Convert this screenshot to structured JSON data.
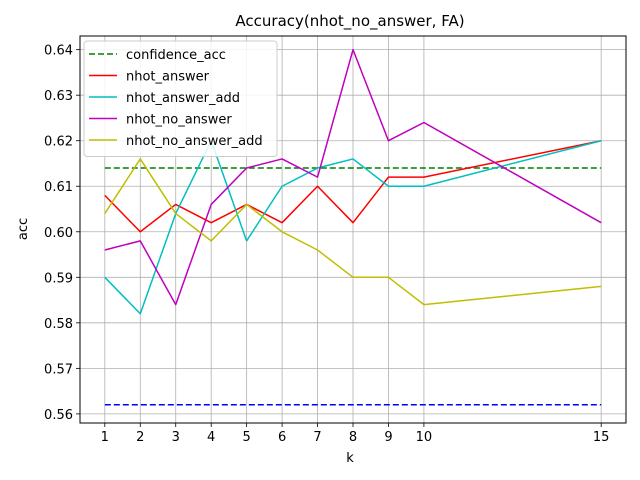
{
  "chart_data": {
    "type": "line",
    "title": "Accuracy(nhot_no_answer, FA)",
    "xlabel": "k",
    "ylabel": "acc",
    "x": [
      1,
      2,
      3,
      4,
      5,
      6,
      7,
      8,
      9,
      10,
      15
    ],
    "x_ticks": [
      "1",
      "2",
      "3",
      "4",
      "5",
      "6",
      "7",
      "8",
      "9",
      "10",
      "15"
    ],
    "y_ticks": [
      "0.56",
      "0.57",
      "0.58",
      "0.59",
      "0.60",
      "0.61",
      "0.62",
      "0.63",
      "0.64"
    ],
    "xlim": [
      0.3,
      15.7
    ],
    "ylim": [
      0.558,
      0.643
    ],
    "grid": true,
    "legend_position": "top-left",
    "series": [
      {
        "name": "confidence_acc",
        "color": "#008000",
        "dashed": true,
        "in_legend": true,
        "values": [
          0.614,
          0.614,
          0.614,
          0.614,
          0.614,
          0.614,
          0.614,
          0.614,
          0.614,
          0.614,
          0.614
        ]
      },
      {
        "name": "nhot_answer",
        "color": "#ff0000",
        "dashed": false,
        "in_legend": true,
        "values": [
          0.608,
          0.6,
          0.606,
          0.602,
          0.606,
          0.602,
          0.61,
          0.602,
          0.612,
          0.612,
          0.62
        ]
      },
      {
        "name": "nhot_answer_add",
        "color": "#00bfbf",
        "dashed": false,
        "in_legend": true,
        "values": [
          0.59,
          0.582,
          0.604,
          0.62,
          0.598,
          0.61,
          0.614,
          0.616,
          0.61,
          0.61,
          0.62
        ]
      },
      {
        "name": "nhot_no_answer",
        "color": "#bf00bf",
        "dashed": false,
        "in_legend": true,
        "values": [
          0.596,
          0.598,
          0.584,
          0.606,
          0.614,
          0.616,
          0.612,
          0.64,
          0.62,
          0.624,
          0.602
        ]
      },
      {
        "name": "nhot_no_answer_add",
        "color": "#bfbf00",
        "dashed": false,
        "in_legend": true,
        "values": [
          0.604,
          0.616,
          0.604,
          0.598,
          0.606,
          0.6,
          0.596,
          0.59,
          0.59,
          0.584,
          0.588
        ]
      },
      {
        "name": "",
        "color": "#0000ff",
        "dashed": true,
        "in_legend": false,
        "values": [
          0.562,
          0.562,
          0.562,
          0.562,
          0.562,
          0.562,
          0.562,
          0.562,
          0.562,
          0.562,
          0.562
        ]
      }
    ]
  }
}
